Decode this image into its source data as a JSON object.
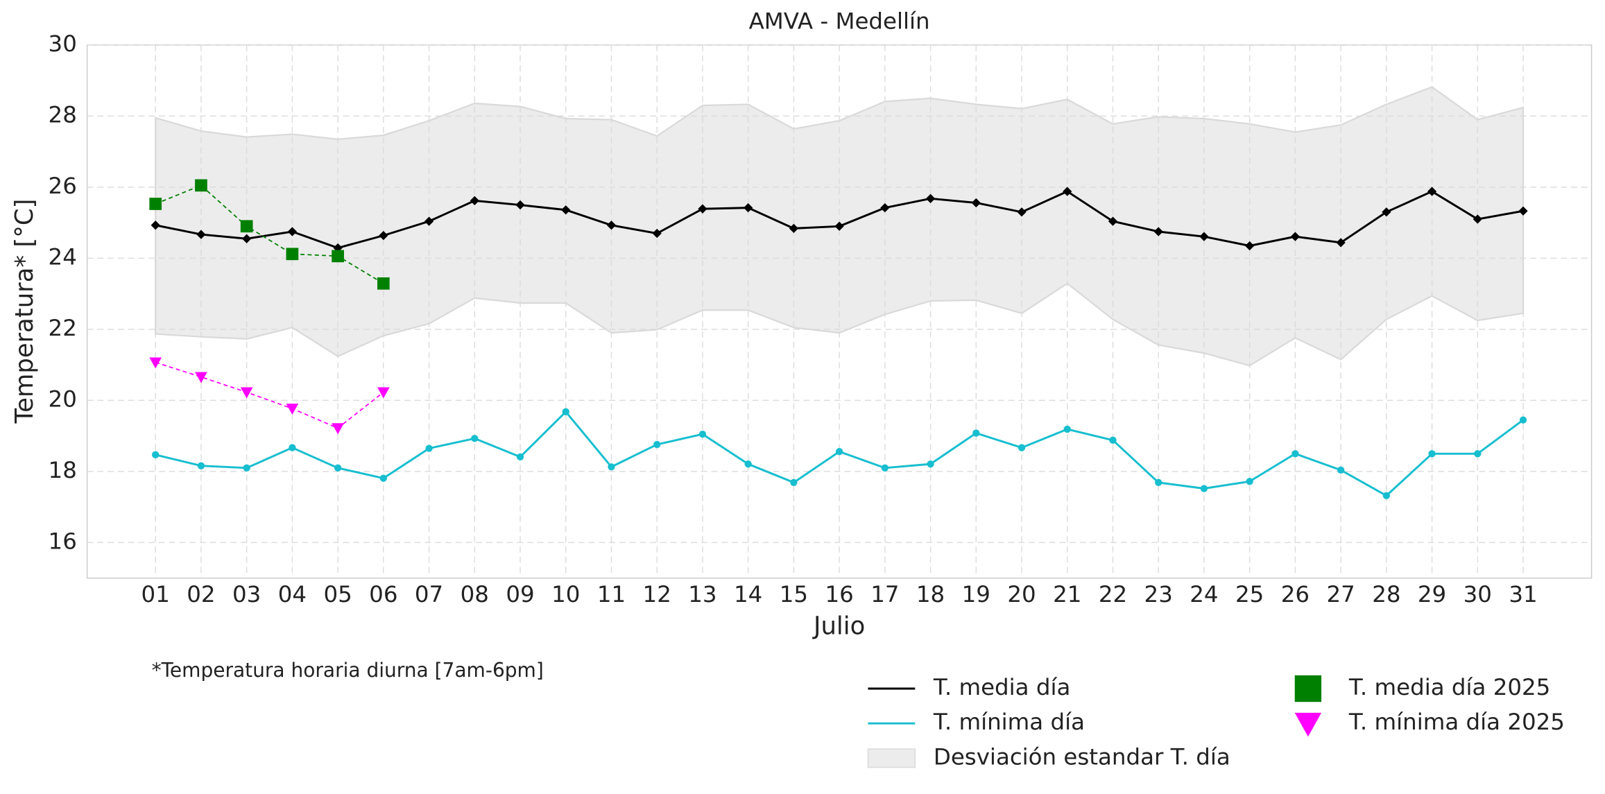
{
  "chart_data": {
    "type": "line",
    "title": "AMVA - Medellín",
    "xlabel": "Julio",
    "ylabel": "Temperatura* [°C]",
    "note": "*Temperatura horaria diurna [7am-6pm]",
    "categories": [
      "01",
      "02",
      "03",
      "04",
      "05",
      "06",
      "07",
      "08",
      "09",
      "10",
      "11",
      "12",
      "13",
      "14",
      "15",
      "16",
      "17",
      "18",
      "19",
      "20",
      "21",
      "22",
      "23",
      "24",
      "25",
      "26",
      "27",
      "28",
      "29",
      "30",
      "31"
    ],
    "ylim": [
      15,
      30
    ],
    "yticks": [
      16,
      18,
      20,
      22,
      24,
      26,
      28,
      30
    ],
    "grid": true,
    "band": {
      "name": "Desviación estandar T. día",
      "color": "#d9d9d9",
      "upper": [
        27.95,
        27.58,
        27.41,
        27.49,
        27.35,
        27.46,
        27.87,
        28.36,
        28.27,
        27.93,
        27.9,
        27.44,
        28.3,
        28.33,
        27.64,
        27.87,
        28.41,
        28.5,
        28.33,
        28.21,
        28.47,
        27.78,
        27.98,
        27.93,
        27.78,
        27.55,
        27.75,
        28.33,
        28.82,
        27.9,
        28.24
      ],
      "lower": [
        21.87,
        21.79,
        21.73,
        22.05,
        21.24,
        21.82,
        22.16,
        22.88,
        22.74,
        22.74,
        21.9,
        21.99,
        22.54,
        22.54,
        22.05,
        21.9,
        22.42,
        22.8,
        22.82,
        22.45,
        23.29,
        22.28,
        21.56,
        21.33,
        20.98,
        21.76,
        21.15,
        22.28,
        22.94,
        22.25,
        22.45
      ]
    },
    "series": [
      {
        "name": "T. media día",
        "color": "#000000",
        "marker": "diamond",
        "linestyle": "solid",
        "values": [
          24.93,
          24.67,
          24.55,
          24.75,
          24.29,
          24.64,
          25.04,
          25.62,
          25.5,
          25.36,
          24.93,
          24.7,
          25.39,
          25.42,
          24.84,
          24.9,
          25.42,
          25.68,
          25.56,
          25.3,
          25.88,
          25.04,
          24.75,
          24.61,
          24.35,
          24.61,
          24.44,
          25.3,
          25.88,
          25.1,
          25.33
        ]
      },
      {
        "name": "T. mínima día",
        "color": "#17becf",
        "marker": "circle",
        "linestyle": "solid",
        "values": [
          18.47,
          18.16,
          18.1,
          18.67,
          18.1,
          17.81,
          18.65,
          18.93,
          18.41,
          19.68,
          18.13,
          18.76,
          19.05,
          18.21,
          17.69,
          18.56,
          18.1,
          18.21,
          19.08,
          18.67,
          19.19,
          18.88,
          17.69,
          17.52,
          17.72,
          18.5,
          18.04,
          17.32,
          18.5,
          18.5,
          19.45
        ]
      },
      {
        "name": "T. media día 2025",
        "color": "#008000",
        "marker": "square",
        "linestyle": "dashed",
        "values": [
          25.53,
          26.05,
          24.9,
          24.12,
          24.06,
          23.29,
          null,
          null,
          null,
          null,
          null,
          null,
          null,
          null,
          null,
          null,
          null,
          null,
          null,
          null,
          null,
          null,
          null,
          null,
          null,
          null,
          null,
          null,
          null,
          null,
          null
        ]
      },
      {
        "name": "T. mínima día 2025",
        "color": "#ff00ff",
        "marker": "triangle-down",
        "linestyle": "dashed",
        "values": [
          21.07,
          20.66,
          20.23,
          19.77,
          19.22,
          20.23,
          null,
          null,
          null,
          null,
          null,
          null,
          null,
          null,
          null,
          null,
          null,
          null,
          null,
          null,
          null,
          null,
          null,
          null,
          null,
          null,
          null,
          null,
          null,
          null,
          null
        ]
      }
    ]
  }
}
